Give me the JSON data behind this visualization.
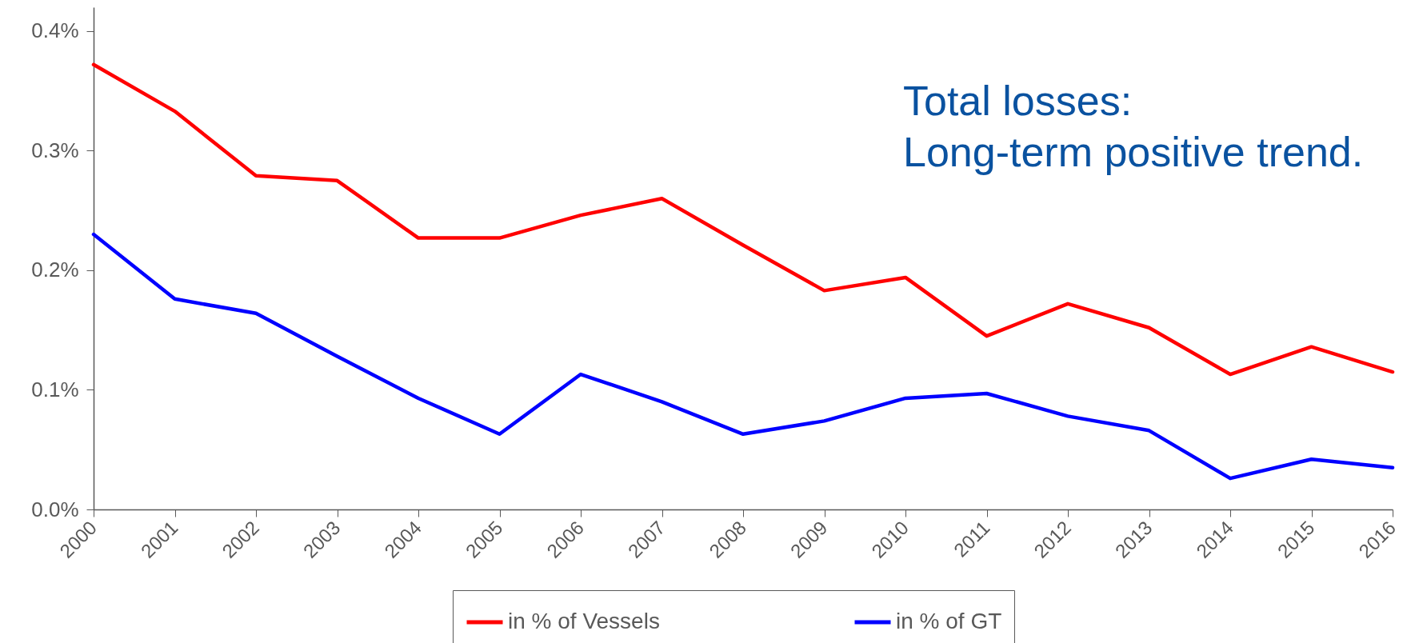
{
  "chart_data": {
    "type": "line",
    "categories": [
      "2000",
      "2001",
      "2002",
      "2003",
      "2004",
      "2005",
      "2006",
      "2007",
      "2008",
      "2009",
      "2010",
      "2011",
      "2012",
      "2013",
      "2014",
      "2015",
      "2016"
    ],
    "series": [
      {
        "name": "in % of Vessels",
        "color": "#ff0000",
        "line_style": "solid",
        "values": [
          0.372,
          0.333,
          0.279,
          0.275,
          0.227,
          0.227,
          0.246,
          0.26,
          0.221,
          0.183,
          0.194,
          0.145,
          0.172,
          0.152,
          0.113,
          0.136,
          0.115
        ]
      },
      {
        "name": "in % of GT",
        "color": "#0000ff",
        "line_style": "solid",
        "values": [
          0.23,
          0.176,
          0.164,
          0.128,
          0.093,
          0.063,
          0.113,
          0.09,
          0.063,
          0.074,
          0.093,
          0.097,
          0.078,
          0.066,
          0.026,
          0.042,
          0.035
        ]
      }
    ],
    "ylim": [
      0,
      0.42
    ],
    "yticks": [
      {
        "value": 0,
        "label": "0.0%"
      },
      {
        "value": 0.1,
        "label": "0.1%"
      },
      {
        "value": 0.2,
        "label": "0.2%"
      },
      {
        "value": 0.3,
        "label": "0.3%"
      },
      {
        "value": 0.4,
        "label": "0.4%"
      }
    ],
    "annotations": [
      "Total losses:\nLong-term positive trend."
    ],
    "grid": false,
    "legend": "bottom"
  }
}
